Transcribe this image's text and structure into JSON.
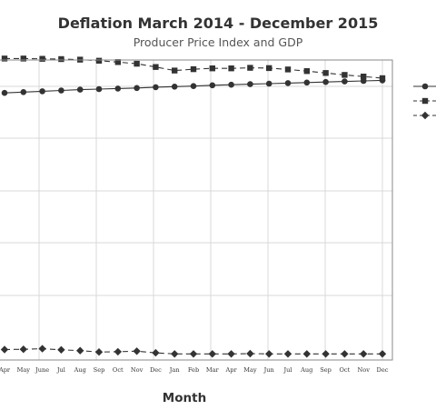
{
  "chart_data": {
    "type": "line",
    "title": "Deflation March 2014 - December 2015",
    "subtitle": "Producer Price Index and GDP",
    "xlabel": "Month",
    "ylabel": "",
    "categories": [
      "Apr",
      "May",
      "June",
      "Jul",
      "Aug",
      "Sep",
      "Oct",
      "Nov",
      "Dec",
      "Jan",
      "Feb",
      "Mar",
      "Apr",
      "May",
      "Jun",
      "Jul",
      "Aug",
      "Sep",
      "Oct",
      "Nov",
      "Dec"
    ],
    "ylim": [
      0,
      110
    ],
    "grid": true,
    "legend_position": "right",
    "series": [
      {
        "marker": "square",
        "line_style": "dashed",
        "values": [
          107.2,
          107.2,
          107.1,
          107.0,
          106.8,
          106.4,
          105.9,
          105.3,
          104.1,
          102.8,
          103.3,
          103.6,
          103.6,
          103.8,
          103.7,
          103.2,
          102.6,
          101.9,
          101.2,
          100.6,
          100.0
        ]
      },
      {
        "marker": "circle",
        "line_style": "solid",
        "values": [
          94.6,
          94.9,
          95.2,
          95.5,
          95.8,
          96.0,
          96.2,
          96.4,
          96.7,
          96.9,
          97.1,
          97.4,
          97.6,
          97.8,
          98.0,
          98.2,
          98.4,
          98.6,
          98.8,
          99.0,
          99.2
        ]
      },
      {
        "marker": "diamond",
        "line_style": "dashed",
        "values": [
          0.5,
          0.6,
          0.8,
          0.4,
          0.1,
          -0.4,
          -0.3,
          -0.1,
          -0.7,
          -1.1,
          -1.1,
          -1.1,
          -1.1,
          -1.0,
          -1.1,
          -1.1,
          -1.1,
          -1.1,
          -1.1,
          -1.1,
          -1.1
        ]
      }
    ]
  },
  "colors": {
    "series": "#333333",
    "grid": "#d8d8d8",
    "frame": "#8a8a8a"
  }
}
